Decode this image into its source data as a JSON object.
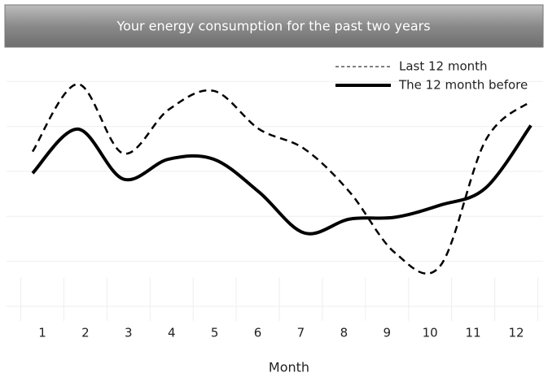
{
  "chart_data": {
    "type": "line",
    "title": "Your energy consumption for the past two years",
    "xlabel": "Month",
    "categories": [
      "1",
      "2",
      "3",
      "4",
      "5",
      "6",
      "7",
      "8",
      "9",
      "10",
      "11",
      "12"
    ],
    "series": [
      {
        "name": "Last 12 month",
        "color": "#000000",
        "dash": "dashed",
        "values": [
          3.44,
          4.94,
          3.4,
          4.37,
          4.79,
          3.94,
          3.5,
          2.54,
          1.19,
          0.9,
          3.69,
          4.56
        ]
      },
      {
        "name": "The 12 month before",
        "color": "#000000",
        "dash": "solid",
        "values": [
          2.96,
          3.94,
          2.83,
          3.27,
          3.27,
          2.54,
          1.63,
          1.94,
          1.98,
          2.25,
          2.63,
          4.02
        ]
      }
    ],
    "ylim": [
      0,
      5.6
    ],
    "yticks": [
      0,
      1,
      2,
      3,
      4,
      5
    ],
    "grid": true,
    "legend": "upper right"
  }
}
